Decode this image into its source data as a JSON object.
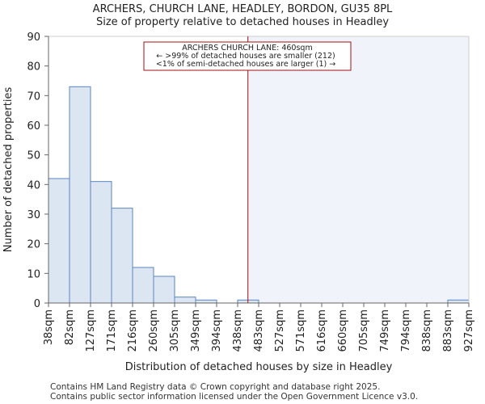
{
  "chart_data": {
    "type": "bar",
    "title": "ARCHERS, CHURCH LANE, HEADLEY, BORDON, GU35 8PL",
    "subtitle": "Size of property relative to detached houses in Headley",
    "xlabel": "Distribution of detached houses by size in Headley",
    "ylabel": "Number of detached properties",
    "bin_edges": [
      38,
      82,
      127,
      171,
      216,
      260,
      305,
      349,
      394,
      438,
      483,
      527,
      571,
      616,
      660,
      705,
      749,
      794,
      838,
      883,
      927
    ],
    "x_tick_labels": [
      "38sqm",
      "82sqm",
      "127sqm",
      "171sqm",
      "216sqm",
      "260sqm",
      "305sqm",
      "349sqm",
      "394sqm",
      "438sqm",
      "483sqm",
      "527sqm",
      "571sqm",
      "616sqm",
      "660sqm",
      "705sqm",
      "749sqm",
      "794sqm",
      "838sqm",
      "883sqm",
      "927sqm"
    ],
    "values": [
      42,
      73,
      41,
      32,
      12,
      9,
      2,
      1,
      0,
      1,
      0,
      0,
      0,
      0,
      0,
      0,
      0,
      0,
      0,
      1
    ],
    "ylim": [
      0,
      90
    ],
    "y_ticks": [
      0,
      10,
      20,
      30,
      40,
      50,
      60,
      70,
      80,
      90
    ],
    "grid": false,
    "marker": {
      "value": 460,
      "label": "ARCHERS CHURCH LANE: 460sqm"
    },
    "annotation_lines": [
      "ARCHERS CHURCH LANE: 460sqm",
      "← >99% of detached houses are smaller (212)",
      "<1% of semi-detached houses are larger (1) →"
    ],
    "colors": {
      "bar_fill": "#dce6f2",
      "bar_edge": "#5a86c0",
      "highlight_fill": "#f0f3fa",
      "marker": "#a01010",
      "axis": "#666666"
    }
  },
  "footer": {
    "line1": "Contains HM Land Registry data © Crown copyright and database right 2025.",
    "line2": "Contains public sector information licensed under the Open Government Licence v3.0."
  }
}
